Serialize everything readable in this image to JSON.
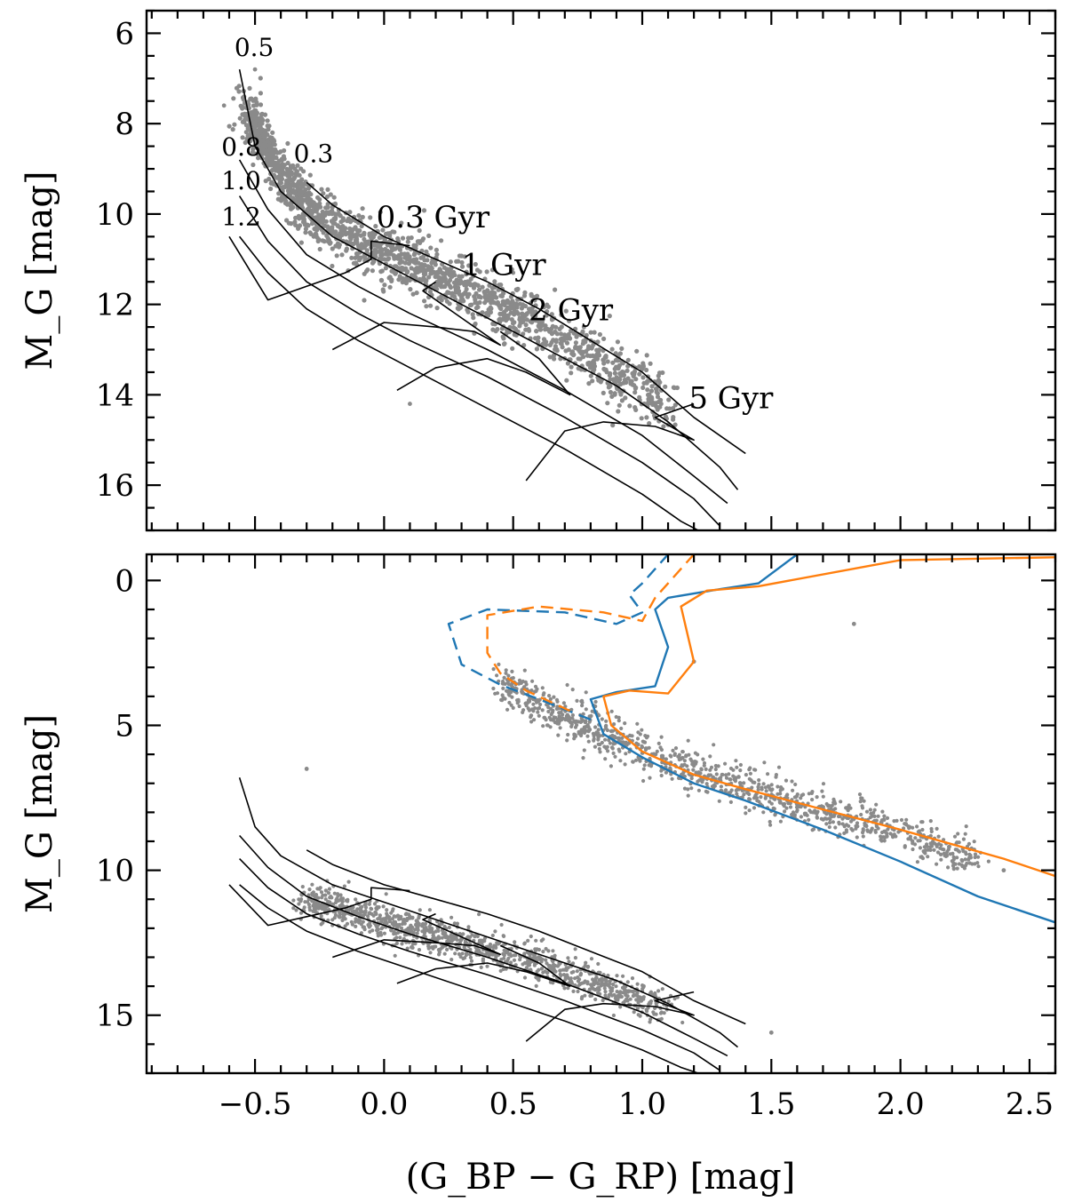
{
  "chart_data": [
    {
      "type": "scatter",
      "panel": "top",
      "xlabel": "(G_BP − G_RP) [mag]",
      "ylabel": "M_G [mag]",
      "xlim": [
        -0.92,
        2.6
      ],
      "ylim": [
        17.0,
        5.5
      ],
      "y_inverted": true,
      "x_ticks": [
        -0.5,
        0.0,
        0.5,
        1.0,
        1.5,
        2.0,
        2.5
      ],
      "y_ticks": [
        6,
        8,
        10,
        12,
        14,
        16
      ],
      "y_tick_labels": [
        "6",
        "8",
        "10",
        "12",
        "14",
        "16"
      ],
      "grid": false,
      "scatter": {
        "name": "observed stars",
        "color": "#8a8a8a",
        "approx_count": 1800,
        "ridge": [
          [
            -0.52,
            7.8
          ],
          [
            -0.4,
            9.2
          ],
          [
            -0.25,
            10.1
          ],
          [
            0.0,
            10.9
          ],
          [
            0.3,
            11.6
          ],
          [
            0.6,
            12.5
          ],
          [
            0.9,
            13.5
          ],
          [
            1.1,
            14.2
          ]
        ],
        "outliers": [
          [
            -0.62,
            7.6
          ],
          [
            -0.5,
            6.8
          ],
          [
            0.1,
            14.2
          ],
          [
            0.5,
            11.3
          ],
          [
            0.6,
            12.9
          ]
        ]
      },
      "mass_labels": [
        {
          "text": "0.5",
          "x": -0.58,
          "y": 6.5
        },
        {
          "text": "0.3",
          "x": -0.35,
          "y": 8.85
        },
        {
          "text": "0.8",
          "x": -0.63,
          "y": 8.7
        },
        {
          "text": "1.0",
          "x": -0.63,
          "y": 9.45
        },
        {
          "text": "1.2",
          "x": -0.63,
          "y": 10.25
        }
      ],
      "age_labels": [
        {
          "text": "0.3 Gyr",
          "x": -0.03,
          "y": 10.3
        },
        {
          "text": "1 Gyr",
          "x": 0.3,
          "y": 11.35
        },
        {
          "text": "2 Gyr",
          "x": 0.56,
          "y": 12.35
        },
        {
          "text": "5 Gyr",
          "x": 1.18,
          "y": 14.3
        }
      ],
      "series": [
        {
          "name": "cooling track 0.3 Msun",
          "color": "#000000",
          "x": [
            -0.3,
            -0.2,
            0.0,
            0.2,
            0.4,
            0.6,
            0.8,
            1.0,
            1.2,
            1.4
          ],
          "y": [
            9.3,
            9.8,
            10.5,
            11.0,
            11.5,
            12.1,
            12.8,
            13.5,
            14.5,
            15.3
          ]
        },
        {
          "name": "cooling track 0.5 Msun",
          "color": "#000000",
          "x": [
            -0.56,
            -0.5,
            -0.4,
            -0.2,
            0.0,
            0.3,
            0.6,
            0.9,
            1.1,
            1.3,
            1.37
          ],
          "y": [
            6.8,
            8.5,
            9.5,
            10.5,
            11.1,
            12.0,
            12.9,
            13.8,
            14.6,
            15.6,
            16.1
          ]
        },
        {
          "name": "cooling track 0.8 Msun",
          "color": "#000000",
          "x": [
            -0.56,
            -0.45,
            -0.3,
            -0.1,
            0.1,
            0.4,
            0.7,
            1.0,
            1.2,
            1.33
          ],
          "y": [
            8.8,
            9.9,
            10.9,
            11.6,
            12.2,
            13.0,
            13.9,
            14.9,
            15.8,
            16.4
          ]
        },
        {
          "name": "cooling track 1.0 Msun",
          "color": "#000000",
          "x": [
            -0.56,
            -0.45,
            -0.3,
            -0.1,
            0.1,
            0.4,
            0.7,
            1.0,
            1.2,
            1.3
          ],
          "y": [
            9.6,
            10.6,
            11.5,
            12.2,
            12.8,
            13.6,
            14.5,
            15.5,
            16.3,
            16.9
          ]
        },
        {
          "name": "cooling track 1.2 Msun",
          "color": "#000000",
          "x": [
            -0.56,
            -0.45,
            -0.3,
            -0.1,
            0.1,
            0.4,
            0.7,
            1.0,
            1.15,
            1.25
          ],
          "y": [
            10.5,
            11.3,
            12.1,
            12.8,
            13.4,
            14.3,
            15.2,
            16.2,
            16.8,
            17.1
          ]
        },
        {
          "name": "isochrone 0.3 Gyr",
          "color": "#000000",
          "x": [
            -0.6,
            -0.45,
            -0.3,
            -0.15,
            -0.05,
            -0.05,
            0.1
          ],
          "y": [
            10.5,
            11.9,
            11.6,
            11.3,
            11.0,
            10.6,
            10.7
          ]
        },
        {
          "name": "isochrone 1 Gyr",
          "color": "#000000",
          "x": [
            -0.2,
            0.0,
            0.2,
            0.35,
            0.45,
            0.25,
            0.15,
            0.2
          ],
          "y": [
            13.0,
            12.4,
            12.5,
            12.6,
            12.9,
            12.1,
            11.7,
            11.5
          ]
        },
        {
          "name": "isochrone 2 Gyr",
          "color": "#000000",
          "x": [
            0.05,
            0.2,
            0.4,
            0.55,
            0.72,
            0.6,
            0.45
          ],
          "y": [
            13.9,
            13.4,
            13.2,
            13.5,
            14.0,
            13.2,
            12.6
          ]
        },
        {
          "name": "isochrone 5 Gyr",
          "color": "#000000",
          "x": [
            0.55,
            0.7,
            0.85,
            1.05,
            1.2,
            1.05,
            1.1,
            1.2
          ],
          "y": [
            15.9,
            14.8,
            14.6,
            14.7,
            15.0,
            14.5,
            14.4,
            14.2
          ]
        }
      ]
    },
    {
      "type": "scatter",
      "panel": "bottom",
      "xlabel": "(G_BP − G_RP) [mag]",
      "ylabel": "M_G [mag]",
      "xlim": [
        -0.92,
        2.6
      ],
      "ylim": [
        17.0,
        -0.9
      ],
      "y_inverted": true,
      "x_ticks": [
        -0.5,
        0.0,
        0.5,
        1.0,
        1.5,
        2.0,
        2.5
      ],
      "x_tick_labels": [
        "−0.5",
        "0.0",
        "0.5",
        "1.0",
        "1.5",
        "2.0",
        "2.5"
      ],
      "y_ticks": [
        0,
        5,
        10,
        15
      ],
      "y_tick_labels": [
        "0",
        "5",
        "10",
        "15"
      ],
      "grid": false,
      "scatter": {
        "name": "observed stars",
        "color": "#8a8a8a",
        "approx_count": 2200,
        "ridge": [
          [
            0.45,
            3.5
          ],
          [
            0.6,
            4.3
          ],
          [
            0.8,
            5.1
          ],
          [
            1.0,
            5.9
          ],
          [
            1.3,
            6.9
          ],
          [
            1.6,
            7.7
          ],
          [
            2.0,
            8.7
          ],
          [
            2.3,
            9.6
          ],
          [
            -0.3,
            11.0
          ],
          [
            0.2,
            12.3
          ],
          [
            0.6,
            13.2
          ],
          [
            1.1,
            14.8
          ]
        ],
        "outliers": [
          [
            1.82,
            1.5
          ],
          [
            1.2,
            2.8
          ],
          [
            -0.3,
            6.5
          ],
          [
            1.9,
            8.3
          ],
          [
            2.4,
            10.0
          ],
          [
            1.5,
            15.6
          ]
        ]
      },
      "series": [
        {
          "name": "isochrone A (blue, solid)",
          "color": "#1f77b4",
          "style": "solid",
          "x": [
            2.6,
            2.3,
            2.0,
            1.7,
            1.4,
            1.2,
            1.0,
            0.85,
            0.8,
            0.9,
            1.05,
            1.1,
            1.05,
            1.1,
            1.3,
            1.45,
            1.6
          ],
          "y": [
            11.8,
            10.9,
            9.7,
            8.6,
            7.6,
            7.0,
            6.1,
            5.3,
            4.1,
            3.85,
            3.65,
            2.3,
            1.0,
            0.6,
            0.3,
            0.1,
            -0.9
          ]
        },
        {
          "name": "isochrone A (blue, dashed)",
          "color": "#1f77b4",
          "style": "dashed",
          "x": [
            0.8,
            0.6,
            0.45,
            0.3,
            0.25,
            0.4,
            0.7,
            0.9,
            1.0,
            0.95,
            1.0,
            1.1
          ],
          "y": [
            4.8,
            4.1,
            3.6,
            2.9,
            1.5,
            1.0,
            1.1,
            1.5,
            1.1,
            0.5,
            0.1,
            -0.9
          ]
        },
        {
          "name": "isochrone B (orange, solid)",
          "color": "#ff7f0e",
          "style": "solid",
          "x": [
            2.6,
            2.4,
            2.2,
            2.0,
            1.7,
            1.4,
            1.2,
            1.0,
            0.88,
            0.85,
            0.95,
            1.1,
            1.2,
            1.15,
            1.25,
            1.45,
            2.0,
            2.6
          ],
          "y": [
            10.2,
            9.6,
            9.1,
            8.6,
            7.9,
            7.2,
            6.7,
            5.9,
            5.0,
            4.0,
            3.8,
            3.9,
            2.8,
            0.9,
            0.35,
            0.2,
            -0.7,
            -0.8
          ]
        },
        {
          "name": "isochrone B (orange, dashed)",
          "color": "#ff7f0e",
          "style": "dashed",
          "x": [
            0.72,
            0.55,
            0.45,
            0.4,
            0.4,
            0.6,
            0.85,
            1.0,
            1.05,
            1.2
          ],
          "y": [
            4.5,
            3.8,
            3.2,
            2.5,
            1.2,
            0.9,
            1.1,
            1.4,
            0.6,
            -0.9
          ]
        },
        {
          "name": "cooling tracks (black)",
          "color": "#000000",
          "style": "solid",
          "note": "same white-dwarf cooling tracks and isochrones as top panel"
        }
      ]
    }
  ]
}
